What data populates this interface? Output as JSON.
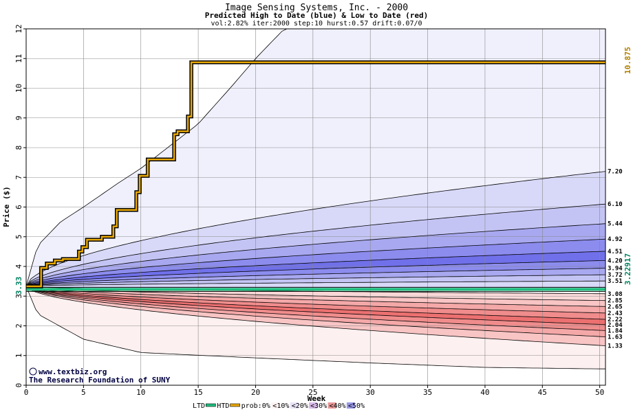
{
  "chart_data": {
    "type": "area",
    "title": "Image Sensing Systems, Inc. - 2000",
    "subtitle": "Predicted High to Date (blue) &  Low to Date (red)",
    "params": "vol:2.82% iter:2000 step:10 hurst:0.57 drift:0.07/0",
    "xlabel": "Week",
    "ylabel": "Price ($)",
    "xlim": [
      0,
      50.5
    ],
    "ylim": [
      0,
      12
    ],
    "x_ticks": [
      0,
      5,
      10,
      15,
      20,
      25,
      30,
      35,
      40,
      45,
      50
    ],
    "y_ticks": [
      0,
      1,
      2,
      3,
      4,
      5,
      6,
      7,
      8,
      9,
      10,
      11,
      12
    ],
    "grid": true,
    "start_price": 3.33,
    "start_label": "3.33",
    "htd_value_label": "10.875",
    "ltd_value_label": "3.22917",
    "end_labels": [
      "7.20",
      "6.10",
      "5.44",
      "4.92",
      "4.51",
      "4.20",
      "3.94",
      "3.72",
      "3.51",
      "3.08",
      "2.85",
      "2.65",
      "2.43",
      "2.22",
      "2.04",
      "1.84",
      "1.63",
      "1.33"
    ],
    "high_envelope": {
      "x": [
        0,
        1,
        3,
        5,
        8,
        10,
        12,
        15,
        18,
        20,
        22.5,
        25,
        50.5
      ],
      "y": [
        3.33,
        4.7,
        5.5,
        6.0,
        6.8,
        7.3,
        7.9,
        8.8,
        10.1,
        11.0,
        12.0,
        12.0,
        12.0
      ]
    },
    "low_envelope": {
      "x": [
        0,
        1,
        5,
        10,
        20,
        30,
        40,
        50
      ],
      "y": [
        3.33,
        2.4,
        1.55,
        1.1,
        0.92,
        0.75,
        0.6,
        0.55
      ]
    },
    "high_quantiles": [
      {
        "name": "<10%",
        "final": 7.2,
        "color": "#d8d8f8"
      },
      {
        "name": "<20%",
        "final": 6.1,
        "color": "#c4c4f4"
      },
      {
        "name": "<30%",
        "final": 5.44,
        "color": "#a8a8f0"
      },
      {
        "name": "<40%",
        "final": 4.92,
        "color": "#8c8cee"
      },
      {
        "name": "<50%",
        "final": 4.51,
        "color": "#7070ea"
      },
      {
        "name": "<40%",
        "final": 4.2,
        "color": "#8c8cee"
      },
      {
        "name": "<30%",
        "final": 3.94,
        "color": "#a8a8f0"
      },
      {
        "name": "<20%",
        "final": 3.72,
        "color": "#c4c4f4"
      },
      {
        "name": "<10%",
        "final": 3.51,
        "color": "#d8d8f8"
      }
    ],
    "low_quantiles": [
      {
        "name": "<10%",
        "final": 3.08,
        "color": "#fad8d8"
      },
      {
        "name": "<20%",
        "final": 2.85,
        "color": "#f8c4c4"
      },
      {
        "name": "<30%",
        "final": 2.65,
        "color": "#f4a8a8"
      },
      {
        "name": "<40%",
        "final": 2.43,
        "color": "#f08c8c"
      },
      {
        "name": "<50%",
        "final": 2.22,
        "color": "#ec7070"
      },
      {
        "name": "<40%",
        "final": 2.04,
        "color": "#f08c8c"
      },
      {
        "name": "<30%",
        "final": 1.84,
        "color": "#f4a8a8"
      },
      {
        "name": "<20%",
        "final": 1.63,
        "color": "#f8c4c4"
      },
      {
        "name": "<10%",
        "final": 1.33,
        "color": "#fad8d8"
      }
    ],
    "htd_series": {
      "name": "HTD",
      "color": "#e8a800",
      "x": [
        0,
        1.3,
        1.3,
        1.8,
        1.8,
        2.5,
        2.5,
        3.2,
        3.2,
        4.6,
        4.6,
        4.9,
        4.9,
        5.3,
        5.3,
        5.6,
        5.6,
        6.6,
        6.6,
        7.6,
        7.6,
        7.9,
        7.9,
        9.6,
        9.6,
        9.9,
        9.9,
        10.6,
        10.6,
        12.9,
        12.9,
        13.2,
        13.2,
        14.1,
        14.1,
        14.4,
        14.4,
        50.5
      ],
      "y": [
        3.33,
        3.33,
        3.95,
        3.95,
        4.1,
        4.1,
        4.2,
        4.2,
        4.25,
        4.25,
        4.5,
        4.5,
        4.65,
        4.65,
        4.9,
        4.9,
        4.9,
        4.9,
        5.0,
        5.0,
        5.35,
        5.35,
        5.9,
        5.9,
        6.5,
        6.5,
        7.05,
        7.05,
        7.6,
        7.6,
        8.45,
        8.45,
        8.55,
        8.55,
        9.05,
        9.05,
        10.875,
        10.875
      ]
    },
    "ltd_series": {
      "name": "LTD",
      "color": "#20c080",
      "x": [
        0,
        50.5
      ],
      "y": [
        3.22917,
        3.22917
      ]
    },
    "legend": {
      "placement": "bottom",
      "items": [
        {
          "label": "LTD",
          "kind": "line",
          "color": "#20c080"
        },
        {
          "label": "HTD",
          "kind": "line",
          "color": "#e8a800"
        },
        {
          "label": "prob:0%",
          "kind": "swatch",
          "color": "#ffffff"
        },
        {
          "label": "<10%",
          "kind": "swatch",
          "color": "#fdf2f2"
        },
        {
          "label": "<20%",
          "kind": "swatch",
          "color": "#e8e2f8"
        },
        {
          "label": "<30%",
          "kind": "swatch",
          "color": "#d8b8e8"
        },
        {
          "label": "<40%",
          "kind": "swatch",
          "color": "#e89898"
        },
        {
          "label": "<50%",
          "kind": "swatch",
          "color": "#9898e8"
        }
      ]
    },
    "credits": [
      "www.textbiz.org",
      "The Research Foundation of SUNY"
    ],
    "copyright_symbol": "©"
  }
}
